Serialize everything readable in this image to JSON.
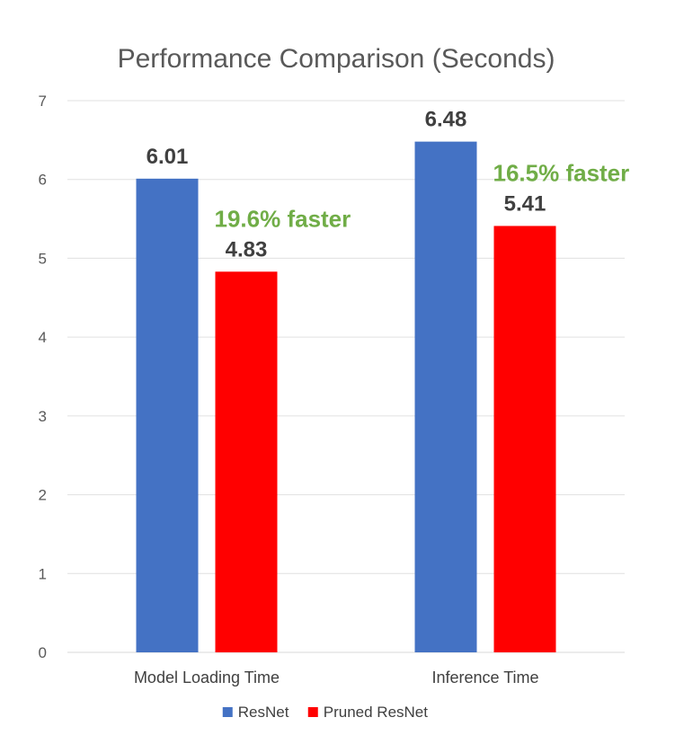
{
  "chart_data": {
    "type": "bar",
    "title": "Performance Comparison (Seconds)",
    "xlabel": "",
    "ylabel": "",
    "categories": [
      "Model Loading Time",
      "Inference Time"
    ],
    "ylim": [
      0,
      7
    ],
    "yticks": [
      0,
      1,
      2,
      3,
      4,
      5,
      6,
      7
    ],
    "grid": true,
    "legend_position": "bottom",
    "series": [
      {
        "name": "ResNet",
        "color": "#4472C4",
        "values": [
          6.01,
          6.48
        ],
        "labels": [
          "6.01",
          "6.48"
        ]
      },
      {
        "name": "Pruned ResNet",
        "color": "#FF0000",
        "values": [
          4.83,
          5.41
        ],
        "labels": [
          "4.83",
          "5.41"
        ]
      }
    ],
    "annotations": [
      {
        "text": "19.6% faster",
        "category_index": 0,
        "color": "#70AD47"
      },
      {
        "text": "16.5% faster",
        "category_index": 1,
        "color": "#70AD47"
      }
    ]
  }
}
